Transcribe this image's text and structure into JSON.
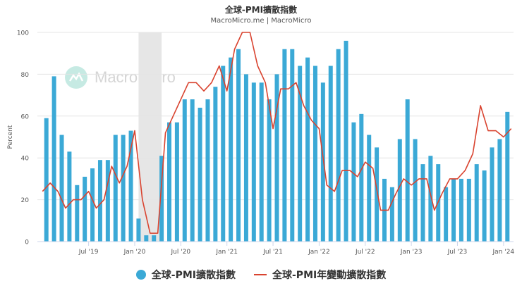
{
  "header": {
    "title": "全球-PMI擴散指數",
    "subtitle": "MacroMicro.me | MacroMicro"
  },
  "watermark": {
    "text": "MacroMicro"
  },
  "legend": {
    "bar_label": "全球-PMI擴散指數",
    "line_label": "全球-PMI年變動擴散指數"
  },
  "chart_data": {
    "type": "bar",
    "ylabel": "Percent",
    "ylim": [
      0,
      100
    ],
    "yticks": [
      0,
      20,
      40,
      60,
      80,
      100
    ],
    "x_tick_labels": [
      "Jul '19",
      "Jan '20",
      "Jul '20",
      "Jan '21",
      "Jul '21",
      "Jan '22",
      "Jul '22",
      "Jan '23",
      "Jul '23",
      "Jan '24"
    ],
    "x_tick_months": [
      "2019-07",
      "2020-01",
      "2020-07",
      "2021-01",
      "2021-07",
      "2022-01",
      "2022-07",
      "2023-01",
      "2023-07",
      "2024-01"
    ],
    "x_start": "2019-01",
    "x_end": "2024-02",
    "shaded_period": [
      "2020-02",
      "2020-04"
    ],
    "colors": {
      "bars": "#3ba9d6",
      "line": "#d9432f",
      "shade": "#e6e6e6"
    },
    "series": [
      {
        "name": "全球-PMI擴散指數",
        "type": "bar",
        "values": [
          59,
          79,
          51,
          43,
          27,
          31,
          35,
          39,
          39,
          51,
          51,
          53,
          11,
          3,
          3,
          41,
          57,
          57,
          68,
          68,
          64,
          68,
          74,
          84,
          88,
          92,
          80,
          76,
          76,
          68,
          80,
          92,
          92,
          84,
          88,
          84,
          76,
          84,
          92,
          96,
          57,
          61,
          51,
          45,
          30,
          26,
          49,
          68,
          49,
          37,
          41,
          37,
          26,
          30,
          30,
          30,
          37,
          34,
          45,
          49,
          62
        ]
      },
      {
        "name": "全球-PMI年變動擴散指數",
        "type": "line",
        "values": [
          24,
          28,
          24,
          16,
          20,
          20,
          24,
          16,
          20,
          36,
          28,
          36,
          53,
          20,
          4,
          4,
          52,
          60,
          68,
          76,
          76,
          72,
          76,
          84,
          72,
          92,
          100,
          100,
          84,
          76,
          54,
          73,
          73,
          76,
          65,
          58,
          54,
          27,
          24,
          34,
          34,
          31,
          38,
          35,
          15,
          15,
          23,
          30,
          27,
          30,
          30,
          15,
          23,
          30,
          30,
          34,
          42,
          65,
          53,
          53,
          50,
          54
        ]
      }
    ]
  }
}
